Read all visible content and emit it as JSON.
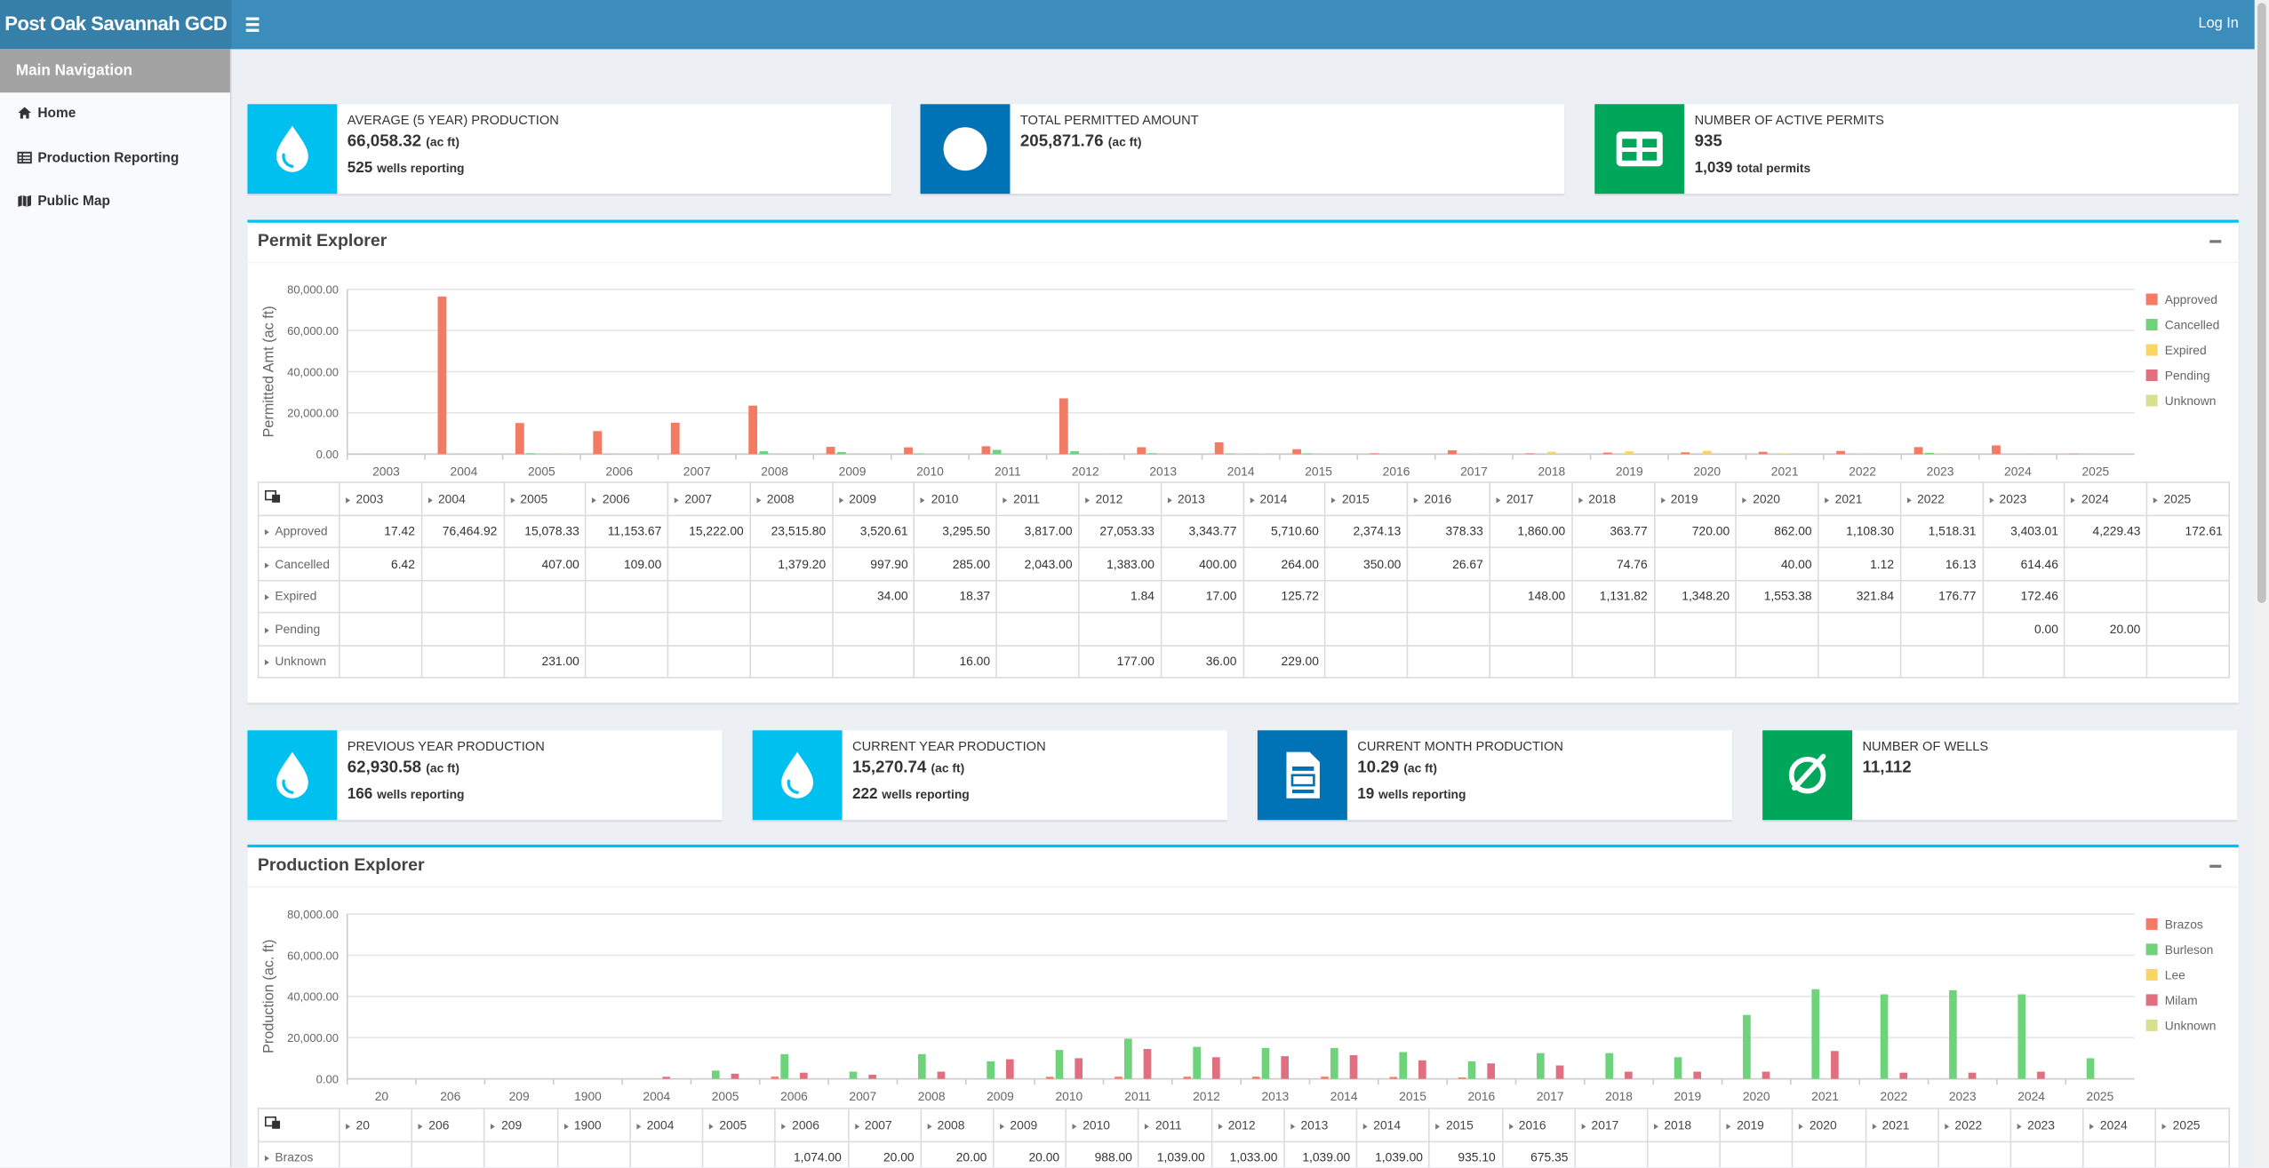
{
  "header": {
    "brand": "Post Oak Savannah GCD",
    "login": "Log In"
  },
  "nav": {
    "title": "Main Navigation",
    "items": [
      "Home",
      "Production Reporting",
      "Public Map"
    ]
  },
  "info_boxes": [
    {
      "label": "AVERAGE (5 YEAR) PRODUCTION",
      "value": "66,058.32",
      "unit": "(ac ft)",
      "sub_value": "525",
      "sub_label": "wells reporting"
    },
    {
      "label": "TOTAL PERMITTED AMOUNT",
      "value": "205,871.76",
      "unit": "(ac ft)"
    },
    {
      "label": "NUMBER OF ACTIVE PERMITS",
      "value": "935",
      "sub_value": "1,039",
      "sub_label": "total permits"
    }
  ],
  "info_boxes_2": [
    {
      "label": "PREVIOUS YEAR PRODUCTION",
      "value": "62,930.58",
      "unit": "(ac ft)",
      "sub_value": "166",
      "sub_label": "wells reporting"
    },
    {
      "label": "CURRENT YEAR PRODUCTION",
      "value": "15,270.74",
      "unit": "(ac ft)",
      "sub_value": "222",
      "sub_label": "wells reporting"
    },
    {
      "label": "CURRENT MONTH PRODUCTION",
      "value": "10.29",
      "unit": "(ac ft)",
      "sub_value": "19",
      "sub_label": "wells reporting"
    },
    {
      "label": "NUMBER OF WELLS",
      "value": "11,112"
    }
  ],
  "permit_explorer": {
    "title": "Permit Explorer"
  },
  "production_explorer": {
    "title": "Production Explorer"
  },
  "chart_data": [
    {
      "type": "bar",
      "y_label": "Permitted Amt (ac ft)",
      "categories": [
        "2003",
        "2004",
        "2005",
        "2006",
        "2007",
        "2008",
        "2009",
        "2010",
        "2011",
        "2012",
        "2013",
        "2014",
        "2015",
        "2016",
        "2017",
        "2018",
        "2019",
        "2020",
        "2021",
        "2022",
        "2023",
        "2024",
        "2025"
      ],
      "series": [
        {
          "name": "Approved",
          "color": "#f37a63",
          "values": [
            17.42,
            76464.92,
            15078.33,
            11153.67,
            15222,
            23515.8,
            3520.61,
            3295.5,
            3817,
            27053.33,
            3343.77,
            5710.6,
            2374.13,
            378.33,
            1860,
            363.77,
            720,
            862,
            1108.3,
            1518.31,
            3403.01,
            4229.43,
            172.61
          ],
          "value_labels": [
            "17.42",
            "76,464.92",
            "15,078.33",
            "11,153.67",
            "15,222.00",
            "23,515.80",
            "3,520.61",
            "3,295.50",
            "3,817.00",
            "27,053.33",
            "3,343.77",
            "5,710.60",
            "2,374.13",
            "378.33",
            "1,860.00",
            "363.77",
            "720.00",
            "862.00",
            "1,108.30",
            "1,518.31",
            "3,403.01",
            "4,229.43",
            "172.61"
          ]
        },
        {
          "name": "Cancelled",
          "color": "#6fd37c",
          "values": [
            6.42,
            null,
            407,
            109,
            null,
            1379.2,
            997.9,
            285,
            2043,
            1383,
            400,
            264,
            350,
            26.67,
            null,
            74.76,
            null,
            40,
            1.12,
            16.13,
            614.46,
            null,
            null
          ],
          "value_labels": [
            "6.42",
            null,
            "407.00",
            "109.00",
            null,
            "1,379.20",
            "997.90",
            "285.00",
            "2,043.00",
            "1,383.00",
            "400.00",
            "264.00",
            "350.00",
            "26.67",
            null,
            "74.76",
            null,
            "40.00",
            "1.12",
            "16.13",
            "614.46",
            null,
            null
          ]
        },
        {
          "name": "Expired",
          "color": "#f9d564",
          "values": [
            null,
            null,
            null,
            null,
            null,
            null,
            34,
            18.37,
            null,
            1.84,
            17,
            125.72,
            null,
            null,
            148,
            1131.82,
            1348.2,
            1553.38,
            321.84,
            176.77,
            172.46,
            null,
            null
          ],
          "value_labels": [
            null,
            null,
            null,
            null,
            null,
            null,
            "34.00",
            "18.37",
            null,
            "1.84",
            "17.00",
            "125.72",
            null,
            null,
            "148.00",
            "1,131.82",
            "1,348.20",
            "1,553.38",
            "321.84",
            "176.77",
            "172.46",
            null,
            null
          ]
        },
        {
          "name": "Pending",
          "color": "#e0707f",
          "values": [
            null,
            null,
            null,
            null,
            null,
            null,
            null,
            null,
            null,
            null,
            null,
            null,
            null,
            null,
            null,
            null,
            null,
            null,
            null,
            null,
            0,
            20,
            null
          ],
          "value_labels": [
            null,
            null,
            null,
            null,
            null,
            null,
            null,
            null,
            null,
            null,
            null,
            null,
            null,
            null,
            null,
            null,
            null,
            null,
            null,
            null,
            "0.00",
            "20.00",
            null
          ]
        },
        {
          "name": "Unknown",
          "color": "#d6e08e",
          "values": [
            null,
            null,
            231,
            null,
            null,
            null,
            null,
            16,
            null,
            177,
            36,
            229,
            null,
            null,
            null,
            null,
            null,
            null,
            null,
            null,
            null,
            null,
            null
          ],
          "value_labels": [
            null,
            null,
            "231.00",
            null,
            null,
            null,
            null,
            "16.00",
            null,
            "177.00",
            "36.00",
            "229.00",
            null,
            null,
            null,
            null,
            null,
            null,
            null,
            null,
            null,
            null,
            null
          ]
        }
      ],
      "ylim": [
        0,
        80000
      ],
      "yticks": [
        {
          "value": 0,
          "label": "0.00"
        },
        {
          "value": 20000,
          "label": "20,000.00"
        },
        {
          "value": 40000,
          "label": "40,000.00"
        },
        {
          "value": 60000,
          "label": "60,000.00"
        },
        {
          "value": 80000,
          "label": "80,000.00"
        }
      ],
      "grid": true,
      "legend": "right"
    },
    {
      "type": "bar",
      "y_label": "Production (ac. ft)",
      "categories": [
        "20",
        "206",
        "209",
        "1900",
        "2004",
        "2005",
        "2006",
        "2007",
        "2008",
        "2009",
        "2010",
        "2011",
        "2012",
        "2013",
        "2014",
        "2015",
        "2016",
        "2017",
        "2018",
        "2019",
        "2020",
        "2021",
        "2022",
        "2023",
        "2024",
        "2025"
      ],
      "series": [
        {
          "name": "Brazos",
          "color": "#f37a63",
          "values": [
            null,
            null,
            null,
            null,
            null,
            null,
            1074,
            20,
            20,
            20,
            988,
            1039,
            1033,
            1039,
            1039,
            935.1,
            675.35,
            null,
            null,
            null,
            null,
            null,
            null,
            null,
            null,
            null
          ],
          "value_labels": [
            null,
            null,
            null,
            null,
            null,
            null,
            "1,074.00",
            "20.00",
            "20.00",
            "20.00",
            "988.00",
            "1,039.00",
            "1,033.00",
            "1,039.00",
            "1,039.00",
            "935.10",
            "675.35",
            null,
            null,
            null,
            null,
            null,
            null,
            null,
            null,
            null
          ]
        },
        {
          "name": "Burleson",
          "color": "#6fd37c",
          "values": [
            null,
            null,
            null,
            null,
            null,
            4000,
            12000,
            3500,
            12000,
            8500,
            14000,
            19500,
            15500,
            15000,
            15000,
            13000,
            8500,
            12500,
            12500,
            10500,
            31000,
            43500,
            41000,
            43000,
            41000,
            10000
          ]
        },
        {
          "name": "Lee",
          "color": "#f9d564",
          "values": [
            null,
            null,
            null,
            null,
            null,
            null,
            null,
            null,
            null,
            null,
            null,
            null,
            null,
            null,
            null,
            null,
            null,
            null,
            null,
            null,
            null,
            null,
            null,
            null,
            null,
            null
          ]
        },
        {
          "name": "Milam",
          "color": "#e0707f",
          "values": [
            null,
            null,
            null,
            null,
            1000,
            2500,
            3000,
            2000,
            3500,
            9500,
            10000,
            14500,
            10500,
            11000,
            11500,
            9000,
            7500,
            6500,
            3500,
            3500,
            3500,
            13500,
            3000,
            3000,
            3500,
            null
          ]
        },
        {
          "name": "Unknown",
          "color": "#d6e08e",
          "values": [
            null,
            null,
            null,
            null,
            null,
            null,
            null,
            null,
            null,
            null,
            null,
            null,
            null,
            null,
            null,
            null,
            null,
            null,
            null,
            null,
            null,
            null,
            null,
            null,
            null,
            null
          ]
        }
      ],
      "ylim": [
        0,
        80000
      ],
      "yticks": [
        {
          "value": 0,
          "label": "0.00"
        },
        {
          "value": 20000,
          "label": "20,000.00"
        },
        {
          "value": 40000,
          "label": "40,000.00"
        },
        {
          "value": 60000,
          "label": "60,000.00"
        },
        {
          "value": 80000,
          "label": "80,000.00"
        }
      ],
      "grid": true,
      "legend": "right"
    }
  ]
}
